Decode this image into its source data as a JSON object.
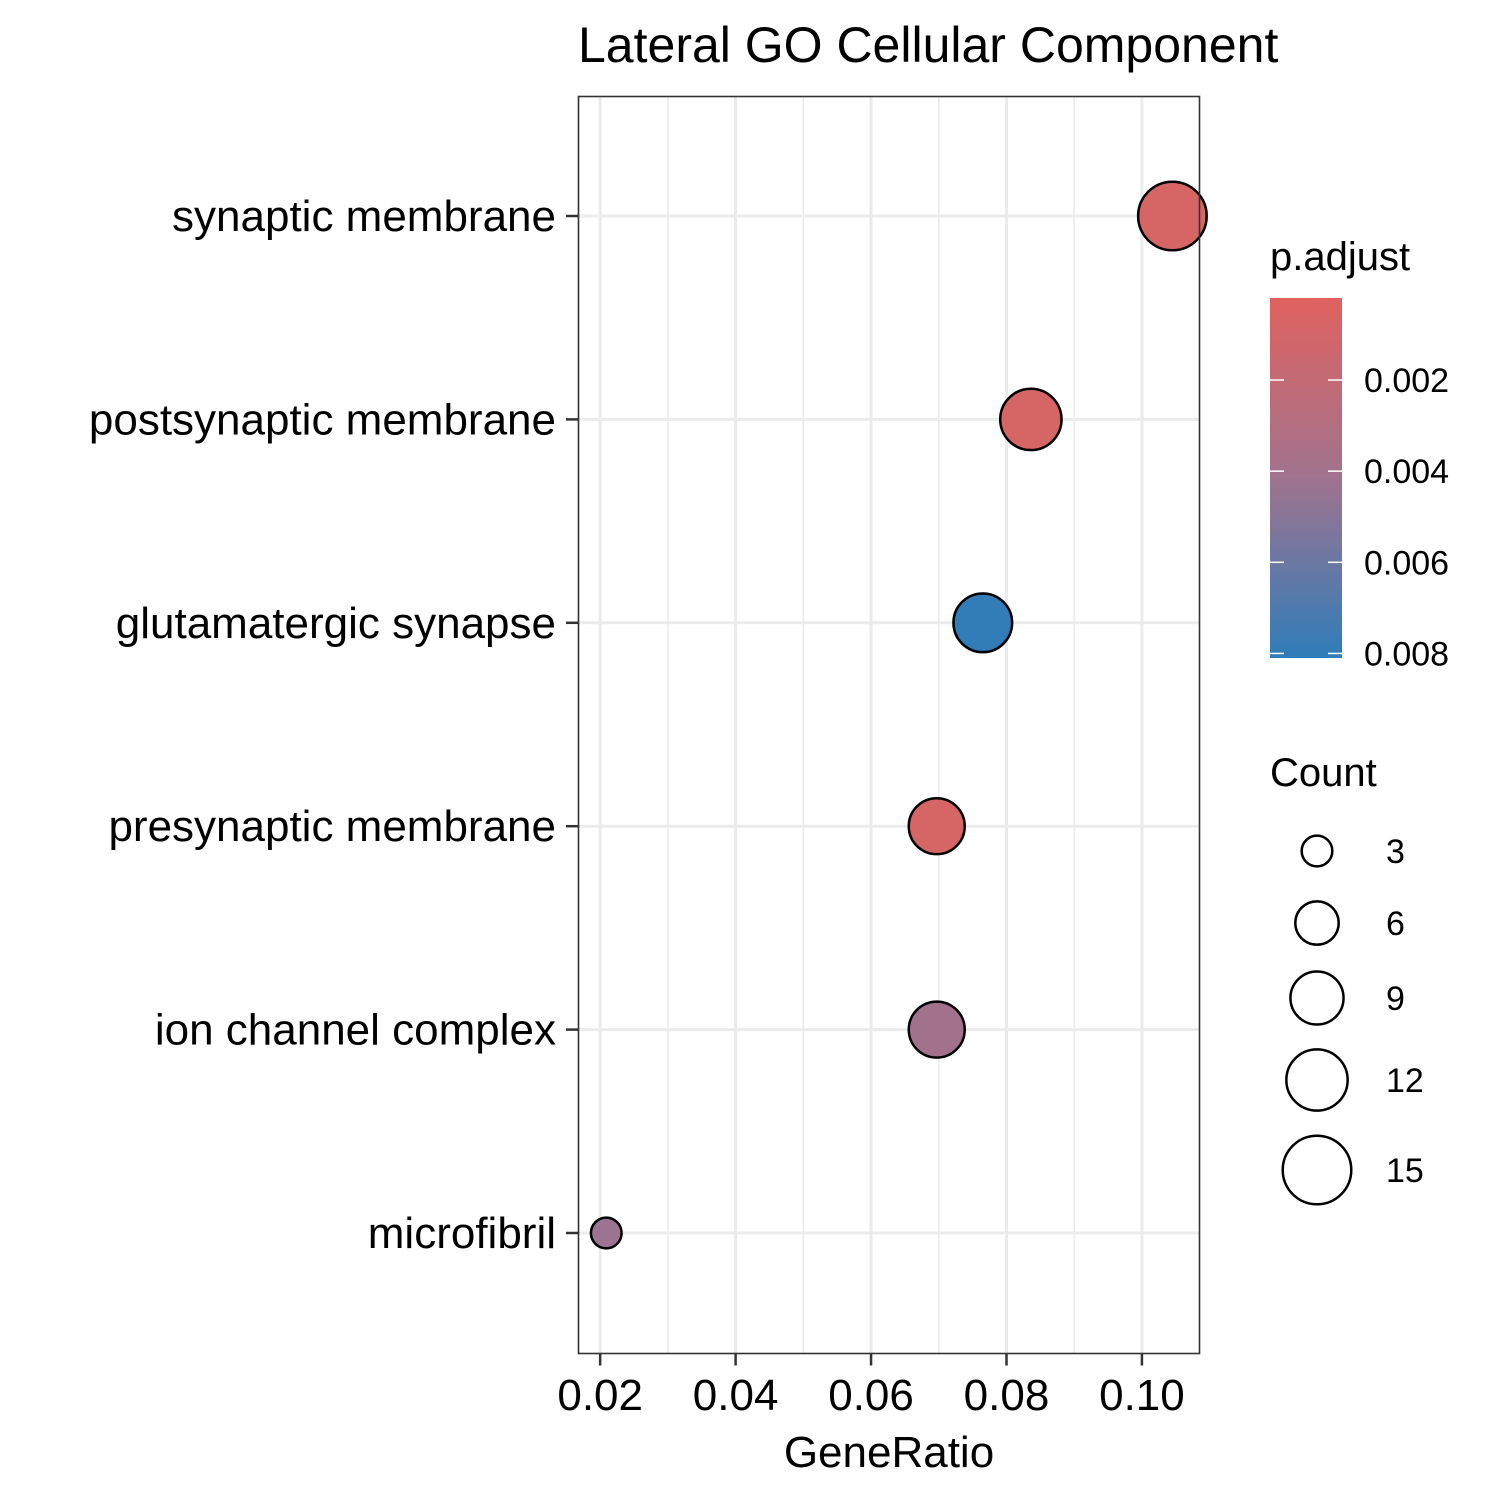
{
  "chart_data": {
    "type": "scatter",
    "title": "Lateral GO Cellular Component",
    "xlabel": "GeneRatio",
    "ylabel": "",
    "xlim": [
      0.0168,
      0.1085
    ],
    "x_ticks": [
      "0.02",
      "0.04",
      "0.06",
      "0.08",
      "0.10"
    ],
    "x_tick_values": [
      0.02,
      0.04,
      0.06,
      0.08,
      0.1
    ],
    "grid": true,
    "categories": [
      "synaptic membrane",
      "postsynaptic membrane",
      "glutamatergic synapse",
      "presynaptic membrane",
      "ion channel complex",
      "microfibril"
    ],
    "points": [
      {
        "term": "synaptic membrane",
        "gene_ratio": 0.1045,
        "count": 15,
        "p_adjust": 0.0008
      },
      {
        "term": "postsynaptic membrane",
        "gene_ratio": 0.0836,
        "count": 12,
        "p_adjust": 0.0008
      },
      {
        "term": "glutamatergic synapse",
        "gene_ratio": 0.0765,
        "count": 11,
        "p_adjust": 0.008
      },
      {
        "term": "presynaptic membrane",
        "gene_ratio": 0.0697,
        "count": 10,
        "p_adjust": 0.0008
      },
      {
        "term": "ion channel complex",
        "gene_ratio": 0.0697,
        "count": 10,
        "p_adjust": 0.004
      },
      {
        "term": "microfibril",
        "gene_ratio": 0.0209,
        "count": 3,
        "p_adjust": 0.0043
      }
    ],
    "color_legend": {
      "title": "p.adjust",
      "min": 0.0002,
      "max": 0.0081,
      "low_color": "#E0625F",
      "mid_color": "#A0738E",
      "high_color": "#2F7DB9",
      "ticks": [
        "0.002",
        "0.004",
        "0.006",
        "0.008"
      ],
      "tick_values": [
        0.002,
        0.004,
        0.006,
        0.008
      ]
    },
    "size_legend": {
      "title": "Count",
      "values": [
        3,
        6,
        9,
        12,
        15
      ],
      "labels": [
        "3",
        "6",
        "9",
        "12",
        "15"
      ]
    },
    "legend_placement": "right"
  }
}
